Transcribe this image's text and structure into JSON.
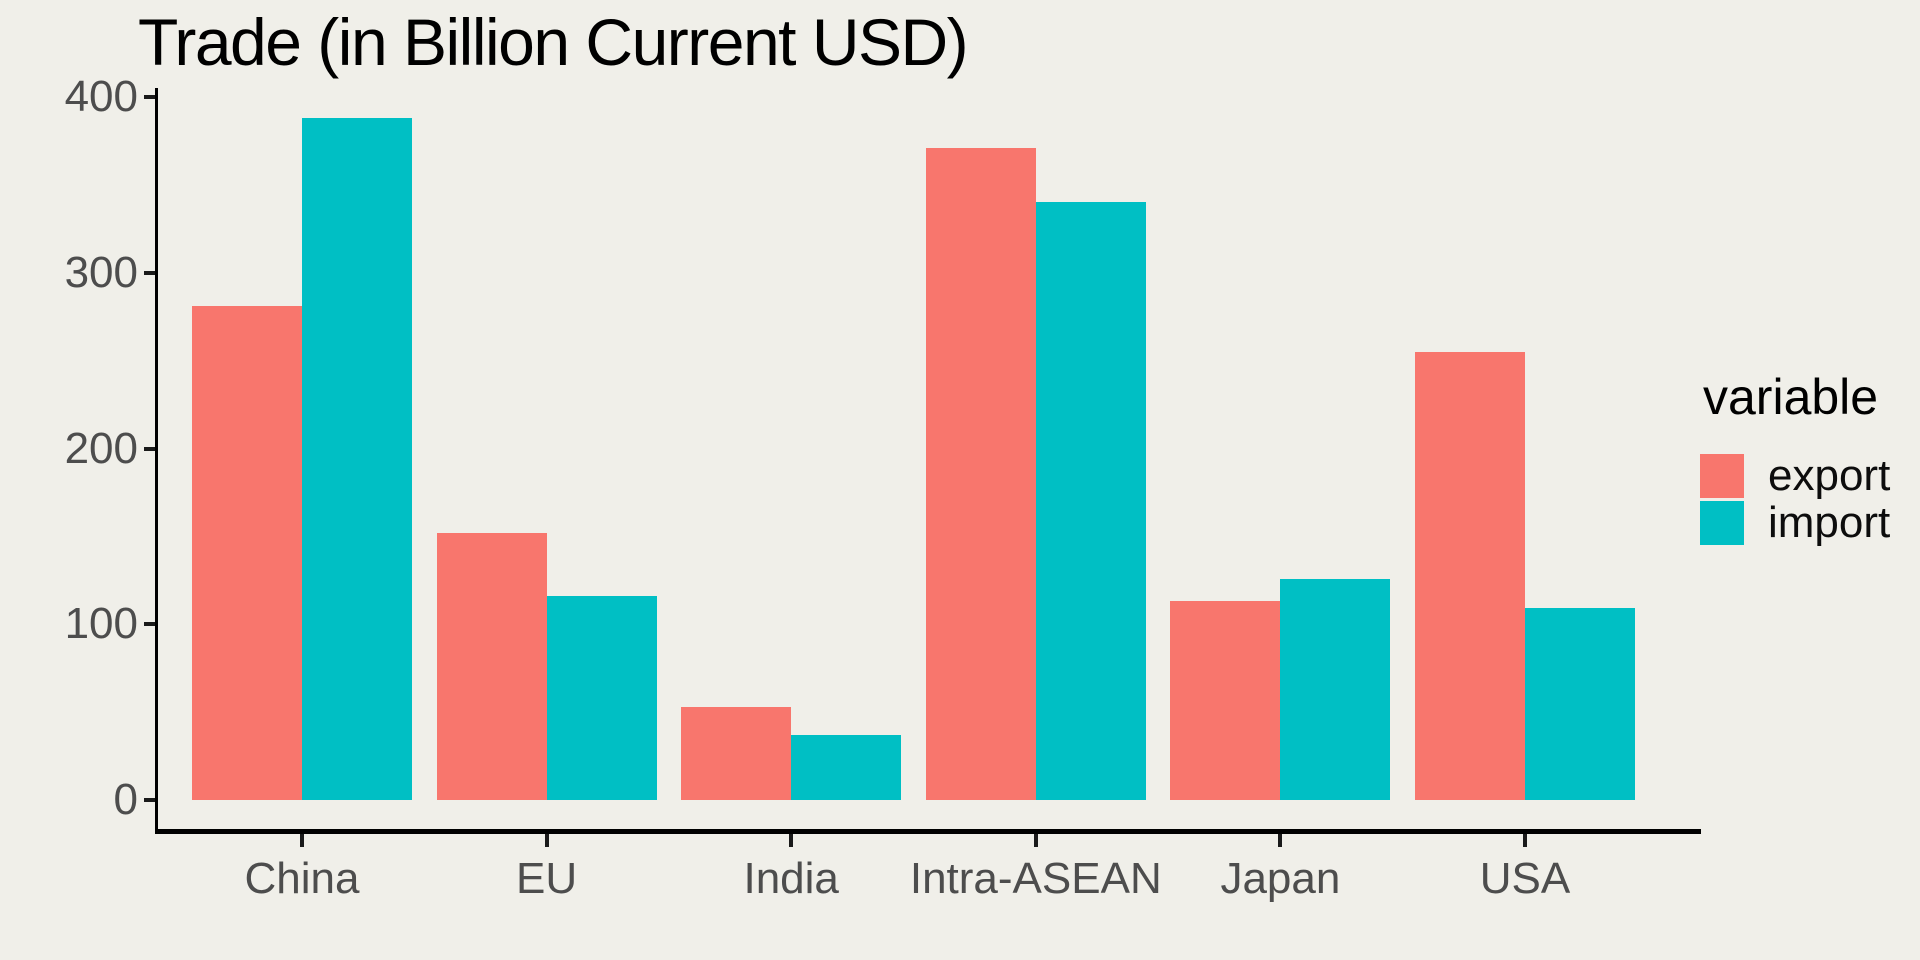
{
  "title": "Trade (in Billion Current USD)",
  "legend": {
    "title": "variable",
    "entries": [
      {
        "label": "export",
        "color": "#F8766D"
      },
      {
        "label": "import",
        "color": "#00BFC4"
      }
    ]
  },
  "axes": {
    "y_tick_labels": [
      "0",
      "100",
      "200",
      "300",
      "400"
    ],
    "x_tick_labels": [
      "China",
      "EU",
      "India",
      "Intra-ASEAN",
      "Japan",
      "USA"
    ]
  },
  "colors": {
    "background": "#F0EFE9",
    "export": "#F8766D",
    "import": "#00BFC4",
    "axis_line": "#000000",
    "tick_text": "#4D4D4D",
    "title_text": "#000000"
  },
  "chart_data": {
    "type": "bar",
    "title": "Trade (in Billion Current USD)",
    "categories": [
      "China",
      "EU",
      "India",
      "Intra-ASEAN",
      "Japan",
      "USA"
    ],
    "series": [
      {
        "name": "export",
        "color": "#F8766D",
        "values": [
          281,
          152,
          53,
          371,
          113,
          255
        ]
      },
      {
        "name": "import",
        "color": "#00BFC4",
        "values": [
          388,
          116,
          37,
          340,
          126,
          109
        ]
      }
    ],
    "xlabel": "",
    "ylabel": "",
    "ylim": [
      0,
      400
    ],
    "yticks": [
      0,
      100,
      200,
      300,
      400
    ],
    "grid": false,
    "legend_title": "variable",
    "legend_position": "right",
    "bar_group_width_fraction": 0.9
  }
}
